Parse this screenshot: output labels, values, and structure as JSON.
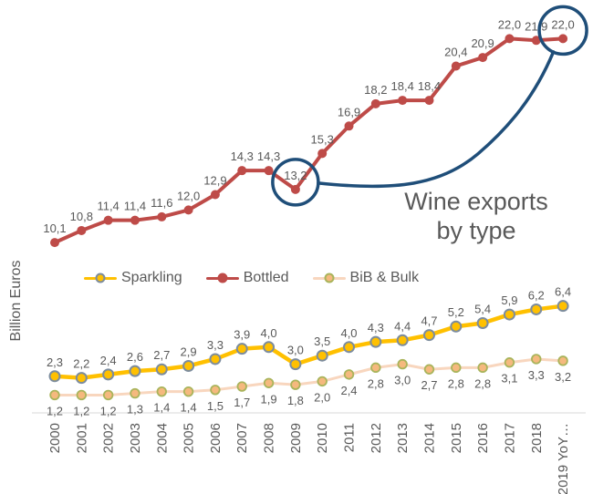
{
  "chart_data": {
    "type": "line",
    "title": "Wine exports\nby type",
    "ylabel": "Billion Euros",
    "ylim": [
      0,
      24
    ],
    "grid": false,
    "legend_position": "middle-left",
    "decimal_separator": ",",
    "categories": [
      "2000",
      "2001",
      "2002",
      "2003",
      "2004",
      "2005",
      "2006",
      "2007",
      "2008",
      "2009",
      "2010",
      "2011",
      "2012",
      "2013",
      "2014",
      "2015",
      "2016",
      "2017",
      "2018",
      "2019 YoY…"
    ],
    "series": [
      {
        "name": "Sparkling",
        "values": [
          2.3,
          2.2,
          2.4,
          2.6,
          2.7,
          2.9,
          3.3,
          3.9,
          4.0,
          3.0,
          3.5,
          4.0,
          4.3,
          4.4,
          4.7,
          5.2,
          5.4,
          5.9,
          6.2,
          6.4
        ],
        "color": "#FFC000",
        "marker_fill": "#FFC000",
        "marker_stroke": "#7C8C9E",
        "line_width": 4.5,
        "marker_radius": 5.5,
        "marker_stroke_width": 2,
        "label_position": "above"
      },
      {
        "name": "Bottled",
        "values": [
          10.1,
          10.8,
          11.4,
          11.4,
          11.6,
          12.0,
          12.9,
          14.3,
          14.3,
          13.2,
          15.3,
          16.9,
          18.2,
          18.4,
          18.4,
          20.4,
          20.9,
          22.0,
          21.9,
          22.0
        ],
        "color": "#BE4B48",
        "marker_fill": "#BE4B48",
        "marker_stroke": "#BE4B48",
        "line_width": 4,
        "marker_radius": 5,
        "marker_stroke_width": 0,
        "label_position": "above"
      },
      {
        "name": "BiB & Bulk",
        "values": [
          1.2,
          1.2,
          1.2,
          1.3,
          1.4,
          1.4,
          1.5,
          1.7,
          1.9,
          1.8,
          2.0,
          2.4,
          2.8,
          3.0,
          2.7,
          2.8,
          2.8,
          3.1,
          3.3,
          3.2
        ],
        "color": "#F8D6BE",
        "marker_fill": "#F5B97E",
        "marker_stroke": "#A9B45B",
        "line_width": 3,
        "marker_radius": 4.8,
        "marker_stroke_width": 1.8,
        "label_position": "below"
      }
    ],
    "annotation": {
      "color": "#1F4E79",
      "highlighted_series": "Bottled",
      "circled_categories": [
        "2009",
        "2019 YoY…"
      ],
      "circled_values": [
        13.2,
        22.0
      ],
      "connector": true
    },
    "axis_line_color": "#D9D9D9",
    "label_color": "#595959"
  }
}
